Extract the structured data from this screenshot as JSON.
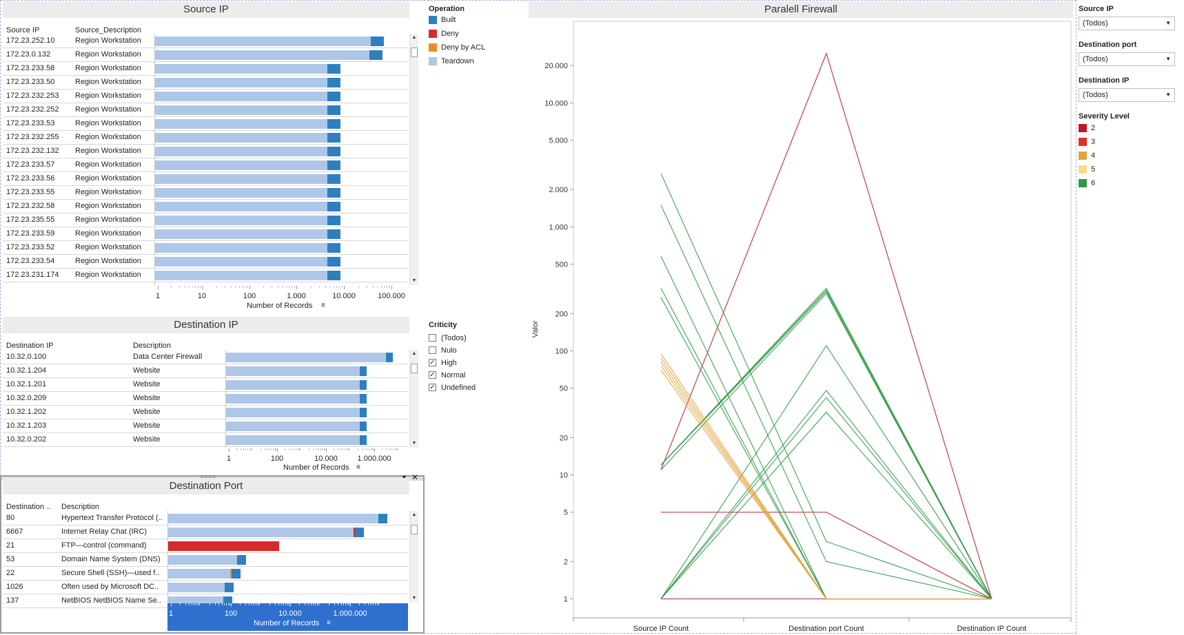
{
  "colors": {
    "built": "#2e7fc0",
    "deny": "#d62b2b",
    "deny_acl": "#f28a1f",
    "teardown": "#aec7e8",
    "sev2": "#c0172b",
    "sev3": "#e0302c",
    "sev4": "#e3a23b",
    "sev5": "#f7dd86",
    "sev6": "#2f9a46"
  },
  "source_ip": {
    "title": "Source IP",
    "col1": "Source IP",
    "col2": "Source_Description",
    "rows": [
      {
        "ip": "172.23.252.10",
        "desc": "Region Workstation",
        "teardown": 70000,
        "built": 80000
      },
      {
        "ip": "172.23.0.132",
        "desc": "Region Workstation",
        "teardown": 65000,
        "built": 75000
      },
      {
        "ip": "172.23.233.58",
        "desc": "Region Workstation",
        "teardown": 7500,
        "built": 7000
      },
      {
        "ip": "172.23.233.50",
        "desc": "Region Workstation",
        "teardown": 7500,
        "built": 7000
      },
      {
        "ip": "172.23.232.253",
        "desc": "Region Workstation",
        "teardown": 7500,
        "built": 7000
      },
      {
        "ip": "172.23.232.252",
        "desc": "Region Workstation",
        "teardown": 7500,
        "built": 7000
      },
      {
        "ip": "172.23.233.53",
        "desc": "Region Workstation",
        "teardown": 7500,
        "built": 7000
      },
      {
        "ip": "172.23.232.255",
        "desc": "Region Workstation",
        "teardown": 7500,
        "built": 7000
      },
      {
        "ip": "172.23.232.132",
        "desc": "Region Workstation",
        "teardown": 7500,
        "built": 7000
      },
      {
        "ip": "172.23.233.57",
        "desc": "Region Workstation",
        "teardown": 7500,
        "built": 7000
      },
      {
        "ip": "172.23.233.56",
        "desc": "Region Workstation",
        "teardown": 7500,
        "built": 7000
      },
      {
        "ip": "172.23.233.55",
        "desc": "Region Workstation",
        "teardown": 7500,
        "built": 7000
      },
      {
        "ip": "172.23.232.58",
        "desc": "Region Workstation",
        "teardown": 7500,
        "built": 7000
      },
      {
        "ip": "172.23.235.55",
        "desc": "Region Workstation",
        "teardown": 7500,
        "built": 7000
      },
      {
        "ip": "172.23.233.59",
        "desc": "Region Workstation",
        "teardown": 7500,
        "built": 7000
      },
      {
        "ip": "172.23.233.52",
        "desc": "Region Workstation",
        "teardown": 7500,
        "built": 7000
      },
      {
        "ip": "172.23.233.54",
        "desc": "Region Workstation",
        "teardown": 7500,
        "built": 7000
      },
      {
        "ip": "172.23.231.174",
        "desc": "Region Workstation",
        "teardown": 7500,
        "built": 7000
      }
    ],
    "axis_ticks": [
      "1",
      "10",
      "100",
      "1.000",
      "10.000",
      "100.000"
    ],
    "axis_label": "Number of Records"
  },
  "dest_ip": {
    "title": "Destination IP",
    "col1": "Destination IP",
    "col2": "Description",
    "rows": [
      {
        "ip": "10.32.0.100",
        "desc": "Data Center Firewall",
        "teardown": 8000000,
        "built": 8000000
      },
      {
        "ip": "10.32.1.204",
        "desc": "Website",
        "teardown": 600000,
        "built": 400000
      },
      {
        "ip": "10.32.1.201",
        "desc": "Website",
        "teardown": 600000,
        "built": 400000
      },
      {
        "ip": "10.32.0.209",
        "desc": "Website",
        "teardown": 600000,
        "built": 400000
      },
      {
        "ip": "10.32.1.202",
        "desc": "Website",
        "teardown": 600000,
        "built": 400000
      },
      {
        "ip": "10.32.1.203",
        "desc": "Website",
        "teardown": 600000,
        "built": 400000
      },
      {
        "ip": "10.32.0.202",
        "desc": "Website",
        "teardown": 600000,
        "built": 400000
      }
    ],
    "axis_ticks": [
      "1",
      "100",
      "10.000",
      "1.000.000"
    ],
    "axis_label": "Number of Records"
  },
  "dest_port": {
    "title": "Destination Port",
    "col1": "Destination ..",
    "col2": "Description",
    "rows": [
      {
        "port": "80",
        "desc": "Hypertext Transfer Protocol (..",
        "teardown": 10000000,
        "built": 8000000,
        "deny": 0
      },
      {
        "port": "6667",
        "desc": "Internet Relay Chat (IRC)",
        "teardown": 1500000,
        "built": 1500000,
        "deny": 60000
      },
      {
        "port": "21",
        "desc": "FTP—control (command)",
        "teardown": 0,
        "built": 0,
        "deny": 5000
      },
      {
        "port": "53",
        "desc": "Domain Name System (DNS)",
        "teardown": 200,
        "built": 200,
        "deny": 0
      },
      {
        "port": "22",
        "desc": "Secure Shell (SSH)—used f..",
        "teardown": 120,
        "built": 150,
        "deny": 0,
        "acl": 10
      },
      {
        "port": "1026",
        "desc": "Often used by Microsoft DC..",
        "teardown": 80,
        "built": 100,
        "deny": 0
      },
      {
        "port": "137",
        "desc": "NetBIOS NetBIOS Name Se..",
        "teardown": 70,
        "built": 60,
        "deny": 0
      }
    ],
    "axis_ticks": [
      "1",
      "100",
      "10.000",
      "1.000.000"
    ],
    "axis_label": "Number of Records"
  },
  "legend_operation": {
    "title": "Operation",
    "items": [
      {
        "label": "Built",
        "color": "#2e7fc0"
      },
      {
        "label": "Deny",
        "color": "#d62b2b"
      },
      {
        "label": "Deny by ACL",
        "color": "#f28a1f"
      },
      {
        "label": "Teardown",
        "color": "#aec7e8"
      }
    ]
  },
  "criticity": {
    "title": "Criticity",
    "items": [
      {
        "label": "(Todos)",
        "checked": false
      },
      {
        "label": "Nulo",
        "checked": false
      },
      {
        "label": "High",
        "checked": true
      },
      {
        "label": "Normal",
        "checked": true
      },
      {
        "label": "Undefined",
        "checked": true
      }
    ]
  },
  "chart_data": {
    "type": "line",
    "title": "Paralell Firewall",
    "ylabel": "Valor",
    "categories": [
      "Source IP Count",
      "Destination port Count",
      "Destination IP Count"
    ],
    "y_scale": "log",
    "ylim": [
      0.8,
      40000
    ],
    "y_ticks": [
      {
        "v": 1,
        "label": "1"
      },
      {
        "v": 2,
        "label": "2"
      },
      {
        "v": 5,
        "label": "5"
      },
      {
        "v": 10,
        "label": "10"
      },
      {
        "v": 20,
        "label": "20"
      },
      {
        "v": 50,
        "label": "50"
      },
      {
        "v": 100,
        "label": "100"
      },
      {
        "v": 200,
        "label": "200"
      },
      {
        "v": 500,
        "label": "500"
      },
      {
        "v": 1000,
        "label": "1.000"
      },
      {
        "v": 2000,
        "label": "2.000"
      },
      {
        "v": 5000,
        "label": "5.000"
      },
      {
        "v": 10000,
        "label": "10.000"
      },
      {
        "v": 20000,
        "label": "20.000"
      }
    ],
    "series": [
      {
        "color": "#c0172b",
        "values": [
          11,
          25000,
          1
        ]
      },
      {
        "color": "#c0172b",
        "values": [
          5,
          5,
          1
        ]
      },
      {
        "color": "#c0172b",
        "values": [
          1,
          1,
          1
        ]
      },
      {
        "color": "#2f9a46",
        "values": [
          12,
          320,
          1
        ]
      },
      {
        "color": "#2f9a46",
        "values": [
          12,
          310,
          1
        ]
      },
      {
        "color": "#2f9a46",
        "values": [
          12,
          300,
          1
        ]
      },
      {
        "color": "#2f9a46",
        "values": [
          11,
          290,
          1
        ]
      },
      {
        "color": "#2f9a46",
        "values": [
          2700,
          2.9,
          1
        ]
      },
      {
        "color": "#2f9a46",
        "values": [
          1500,
          2,
          1
        ]
      },
      {
        "color": "#2f9a46",
        "values": [
          580,
          1,
          1
        ]
      },
      {
        "color": "#2f9a46",
        "values": [
          320,
          1,
          1
        ]
      },
      {
        "color": "#2f9a46",
        "values": [
          270,
          1,
          1
        ]
      },
      {
        "color": "#2f9a46",
        "values": [
          1,
          110,
          1
        ]
      },
      {
        "color": "#2f9a46",
        "values": [
          1,
          48,
          1
        ]
      },
      {
        "color": "#2f9a46",
        "values": [
          1,
          42,
          1
        ]
      },
      {
        "color": "#2f9a46",
        "values": [
          1,
          32,
          1
        ]
      },
      {
        "color": "#e3a23b",
        "values": [
          95,
          1,
          1
        ]
      },
      {
        "color": "#e3a23b",
        "values": [
          88,
          1,
          1
        ]
      },
      {
        "color": "#e3a23b",
        "values": [
          82,
          1,
          1
        ]
      },
      {
        "color": "#e3a23b",
        "values": [
          76,
          1,
          1
        ]
      },
      {
        "color": "#e3a23b",
        "values": [
          70,
          1,
          1
        ]
      }
    ]
  },
  "filters": {
    "source_ip": {
      "label": "Source IP",
      "value": "(Todos)"
    },
    "dest_port": {
      "label": "Destination port",
      "value": "(Todos)"
    },
    "dest_ip": {
      "label": "Destination IP",
      "value": "(Todos)"
    }
  },
  "severity": {
    "title": "Severity Level",
    "items": [
      {
        "label": "2",
        "color": "#c0172b"
      },
      {
        "label": "3",
        "color": "#e0302c"
      },
      {
        "label": "4",
        "color": "#e3a23b"
      },
      {
        "label": "5",
        "color": "#f7dd86"
      },
      {
        "label": "6",
        "color": "#2f9a46"
      }
    ]
  }
}
